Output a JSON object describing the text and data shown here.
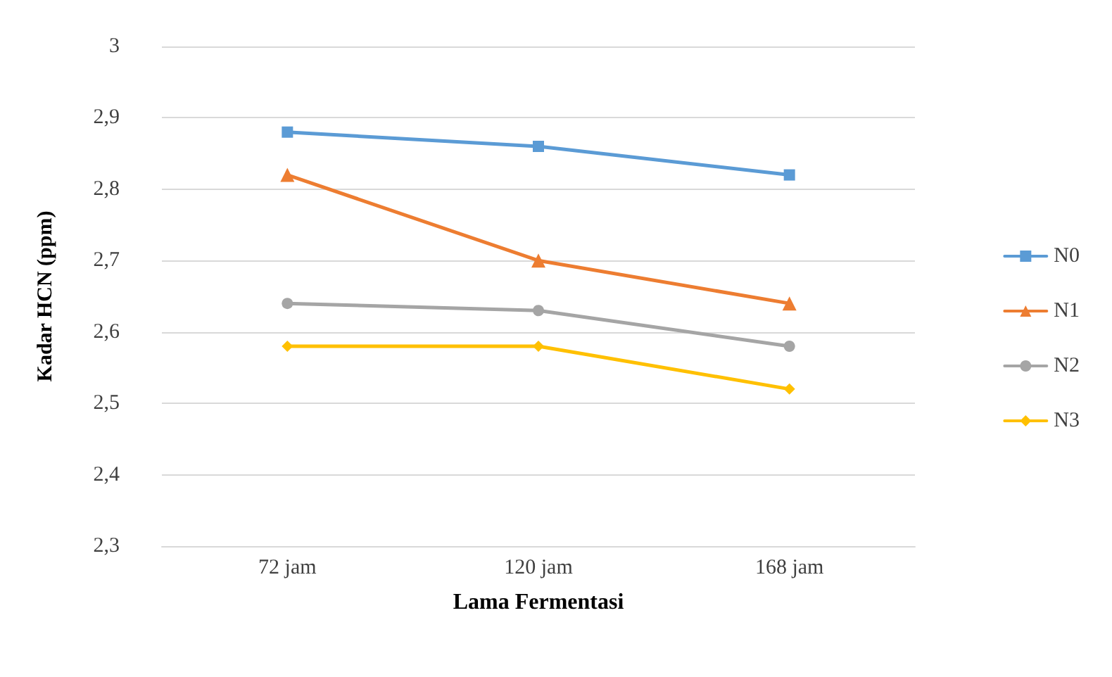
{
  "chart_data": {
    "type": "line",
    "xlabel": "Lama Fermentasi",
    "ylabel": "Kadar HCN (ppm)",
    "categories": [
      "72 jam",
      "120 jam",
      "168 jam"
    ],
    "series": [
      {
        "name": "N0",
        "color": "#5b9bd5",
        "marker": "square",
        "values": [
          2.88,
          2.86,
          2.82
        ]
      },
      {
        "name": "N1",
        "color": "#ed7d31",
        "marker": "triangle",
        "values": [
          2.82,
          2.7,
          2.64
        ]
      },
      {
        "name": "N2",
        "color": "#a5a5a5",
        "marker": "circle",
        "values": [
          2.64,
          2.63,
          2.58
        ]
      },
      {
        "name": "N3",
        "color": "#ffc000",
        "marker": "diamond",
        "values": [
          2.58,
          2.58,
          2.52
        ]
      }
    ],
    "ylim": [
      2.3,
      3
    ],
    "yticks": [
      {
        "value": 2.3,
        "label": "2,3"
      },
      {
        "value": 2.4,
        "label": "2,4"
      },
      {
        "value": 2.5,
        "label": "2,5"
      },
      {
        "value": 2.6,
        "label": "2,6"
      },
      {
        "value": 2.7,
        "label": "2,7"
      },
      {
        "value": 2.8,
        "label": "2,8"
      },
      {
        "value": 2.9,
        "label": "2,9"
      },
      3
    ],
    "grid": "y",
    "legend": "right",
    "line_style": "solid"
  }
}
